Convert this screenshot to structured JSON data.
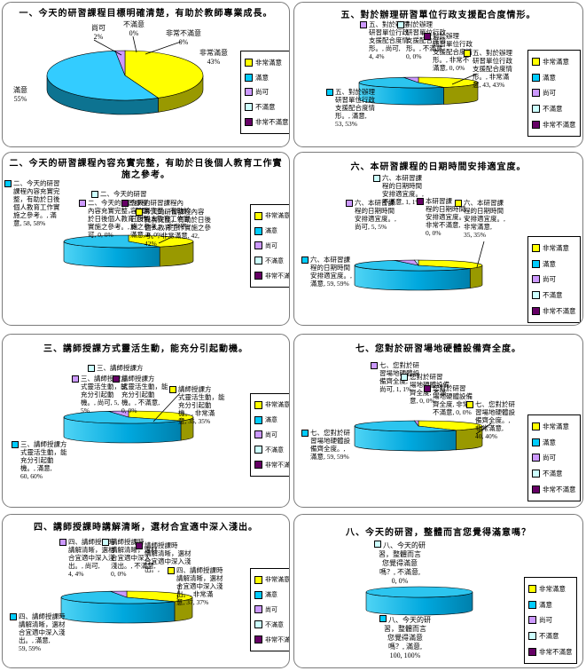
{
  "legend": {
    "items": [
      {
        "label": "非常滿意",
        "color": "#ffff00",
        "side": "#999900"
      },
      {
        "label": "滿意",
        "color": "#00ccff",
        "side": "#0d7391"
      },
      {
        "label": "尚可",
        "color": "#cc99ff",
        "side": "#9966cc"
      },
      {
        "label": "不滿意",
        "color": "#ccffff",
        "side": "#99cccc"
      },
      {
        "label": "非常不滿意",
        "color": "#660066",
        "side": "#440044"
      }
    ]
  },
  "chart_data": [
    {
      "type": "pie",
      "unit": "%",
      "title": "一、今天的研習課程目標明確清楚，有助於教師專業成長。",
      "categories": [
        "非常滿意",
        "滿意",
        "尚可",
        "不滿意",
        "非常不滿意"
      ],
      "values": [
        43,
        55,
        2,
        0,
        0
      ],
      "legend_position": "right",
      "labels": [
        {
          "marker": null,
          "text": "尚可\n2%"
        },
        {
          "marker": null,
          "text": "不滿意\n0%"
        },
        {
          "marker": null,
          "text": "非常不滿意\n0%"
        },
        {
          "marker": null,
          "text": "非常滿意\n43%"
        },
        {
          "marker": null,
          "text": "滿意\n55%"
        }
      ]
    },
    {
      "type": "pie",
      "unit": "%",
      "title": "二、今天的研習課程內容充實完整，有助於日後個人教育工作實施之參考。",
      "categories": [
        "非常滿意",
        "滿意",
        "尚可",
        "不滿意",
        "非常不滿意"
      ],
      "values": [
        42,
        58,
        0,
        0,
        0
      ],
      "legend_position": "right",
      "labels": [
        {
          "marker": "滿意",
          "text": "二、今天的研習\n課程內容充實完\n整，有助於日後\n個人教育工作實\n施之參考。, 滿\n意, 58, 58%"
        },
        {
          "marker": "不滿意",
          "text": "二、今天的研習"
        },
        {
          "marker": "尚可",
          "text": "二、今天的研習課程\n內容充實完整，有助\n於日後個人教育工作\n實施之參考。, 尚\n可, 0, 0%"
        },
        {
          "marker": "非常不滿意",
          "text": "今天的研習課程內\n容充實完整，有助於\n日後個人教育工作實\n施之參考。, 非常不\n滿意, 0, 0%"
        },
        {
          "marker": "非常滿意",
          "text": "今天的研習課程內容\n充實完整，有助於日後\n個人教育工作實施之參\n考。, 非常滿意, 42,\n42%"
        }
      ]
    },
    {
      "type": "pie",
      "unit": "%",
      "title": "三、講師授課方式靈活生動，能充分引起動機。",
      "categories": [
        "非常滿意",
        "滿意",
        "尚可",
        "不滿意",
        "非常不滿意"
      ],
      "values": [
        35,
        60,
        5,
        0,
        0
      ],
      "legend_position": "right",
      "labels": [
        {
          "marker": "不滿意",
          "text": "三、講師授課方"
        },
        {
          "marker": "尚可",
          "text": "三、講師授課方\n式靈活生動，能\n充分引起動\n機。, 尚可, 5,\n5%"
        },
        {
          "marker": "非常不滿意",
          "text": "講師授課方\n式靈活生動，能\n充分引起動\n機。, 不滿意,\n0, 0%"
        },
        {
          "marker": "非常滿意",
          "text": "講師授課方\n式靈活生動，能\n充分引起動\n機。, 非常滿\n意, 35, 35%"
        },
        {
          "marker": "滿意",
          "text": "三、講師授課方\n式靈活生動，能\n充分引起動\n機。, 滿意,\n60, 60%"
        }
      ]
    },
    {
      "type": "pie",
      "unit": "%",
      "title": "四、講師授課時講解清晰，選材合宜適中深入淺出。",
      "categories": [
        "非常滿意",
        "滿意",
        "尚可",
        "不滿意",
        "非常不滿意"
      ],
      "values": [
        37,
        59,
        4,
        0,
        0
      ],
      "legend_position": "right",
      "labels": [
        {
          "marker": "尚可",
          "text": "四、講師授課時\n講解清晰，選材\n合宜適中深入淺\n出。, 尚可,\n4, 4%"
        },
        {
          "marker": "不滿意",
          "text": "講師授課時\n講解清晰，選材\n合宜適中深入\n淺出。, 不滿意,\n0, 0%"
        },
        {
          "marker": "非常不滿意",
          "text": "講師授課時\n講解清晰，選材\n合宜適中深入淺\n出。,"
        },
        {
          "marker": "非常滿意",
          "text": "四、講師授課時\n講解清晰，選材\n合宜適中深入淺\n出。, 非常滿\n意, 37, 37%"
        },
        {
          "marker": "滿意",
          "text": "四、講師授課時\n講解清晰，選材\n合宜適中深入淺\n出。, 滿意,\n59, 59%"
        }
      ]
    },
    {
      "type": "pie",
      "unit": "%",
      "title": "五、對於辦理研習單位行政支援配合度情形。",
      "categories": [
        "非常滿意",
        "滿意",
        "尚可",
        "不滿意",
        "非常不滿意"
      ],
      "values": [
        43,
        53,
        4,
        0,
        0
      ],
      "legend_position": "right",
      "labels": [
        {
          "marker": "尚可",
          "text": "五、對於辦理\n研習單位行政\n支援配合度情\n形。, 尚可,\n4, 4%"
        },
        {
          "marker": "不滿意",
          "text": "對於辦理\n研習單位行政\n支援配合度情\n形。, 不滿意,\n0, 0%"
        },
        {
          "marker": "非常不滿意",
          "text": "對於辦理\n研習單位行政\n支援配合度情\n形。, 非常不\n滿意, 0, 0%"
        },
        {
          "marker": "非常滿意",
          "text": "五、對於辦理\n研習單位行政\n支援配合度情\n形。, 非常滿\n意, 43, 43%"
        },
        {
          "marker": "滿意",
          "text": "五、對於辦理\n研習單位行政\n支援配合度情\n形。, 滿意,\n53, 53%"
        }
      ]
    },
    {
      "type": "pie",
      "unit": "%",
      "title": "六、本研習課程的日期時間安排適宜度。",
      "categories": [
        "非常滿意",
        "滿意",
        "尚可",
        "不滿意",
        "非常不滿意"
      ],
      "values": [
        35,
        59,
        5,
        1,
        0
      ],
      "legend_position": "right",
      "labels": [
        {
          "marker": "不滿意",
          "text": "六、本研習課\n程的日期時間\n安排適宜度。,\n不滿意, 1, 1%"
        },
        {
          "marker": "尚可",
          "text": "六、本研習課\n程的日期時間\n安排適宜度。,\n尚可, 5, 5%"
        },
        {
          "marker": "非常不滿意",
          "text": "本研習課\n程的日期時間\n安排適宜度。,\n非常不滿意,\n0, 0%"
        },
        {
          "marker": "非常滿意",
          "text": "六、本研習課\n程的日期時間\n安排適宜度。,\n非常滿意,\n35, 35%"
        },
        {
          "marker": "滿意",
          "text": "六、本研習課\n程的日期時間\n安排適宜度。,\n滿意, 59, 59%"
        }
      ]
    },
    {
      "type": "pie",
      "unit": "%",
      "title": "七、您對於研習場地硬體設備齊全度。",
      "categories": [
        "非常滿意",
        "滿意",
        "尚可",
        "不滿意",
        "非常不滿意"
      ],
      "values": [
        40,
        59,
        1,
        0,
        0
      ],
      "legend_position": "right",
      "labels": [
        {
          "marker": "尚可",
          "text": "七、您對於研\n習場地硬體設\n備齊全度,\n尚可, 1, 1%"
        },
        {
          "marker": "不滿意",
          "text": "您對於研習\n場地硬體設備\n齊全度, 不滿\n意, 0, 0%"
        },
        {
          "marker": "非常不滿意",
          "text": "您對於研習\n場地硬體設備\n齊全度, 非常\n不滿意, 0, 0%"
        },
        {
          "marker": "非常滿意",
          "text": "七、您對於研\n習場地硬體設\n備齊全度。,\n非常滿意,\n40, 40%"
        },
        {
          "marker": "滿意",
          "text": "七、您對於研\n習場地硬體設\n備齊全度。,\n滿意, 59, 59%"
        }
      ]
    },
    {
      "type": "pie",
      "unit": "%",
      "title": "八、今天的研習，整體而言您覺得滿意嗎？",
      "categories": [
        "非常滿意",
        "滿意",
        "尚可",
        "不滿意",
        "非常不滿意"
      ],
      "values": [
        0,
        100,
        0,
        0,
        0
      ],
      "legend_position": "right",
      "labels": [
        {
          "marker": "不滿意",
          "text": "八、今天的研\n習，整體而言\n您覺得滿意\n嗎？, 不滿意,\n0, 0%"
        },
        {
          "marker": "滿意",
          "text": "八、今天的研\n習，整體而言\n您覺得滿意\n嗎？, 滿意,\n100, 100%"
        }
      ]
    }
  ]
}
